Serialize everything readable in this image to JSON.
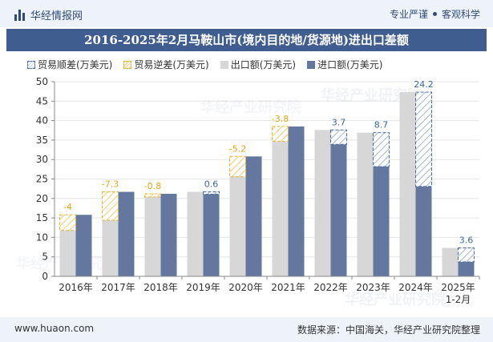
{
  "header": {
    "brand": "华经情报网",
    "tag1": "专业严谨",
    "tag2": "客观科学"
  },
  "footer": {
    "website": "www.huaon.com",
    "source": "数据来源：中国海关，华经产业研究院整理"
  },
  "chart_data": {
    "type": "bar",
    "title": "2016-2025年2月马鞍山市(境内目的地/货源地)进出口差额",
    "categories": [
      "2016年",
      "2017年",
      "2018年",
      "2019年",
      "2020年",
      "2021年",
      "2022年",
      "2023年",
      "2024年",
      "2025年\n1-2月"
    ],
    "series": [
      {
        "name": "出口额(万美元)",
        "values": [
          11.8,
          14.4,
          20.4,
          21.7,
          25.6,
          34.7,
          37.6,
          36.9,
          47.3,
          7.3
        ]
      },
      {
        "name": "进口额(万美元)",
        "values": [
          15.8,
          21.7,
          21.2,
          21.1,
          30.8,
          38.5,
          33.9,
          28.2,
          23.1,
          3.7
        ]
      }
    ],
    "balance": {
      "values": [
        -4,
        -7.3,
        -0.8,
        0.6,
        -5.2,
        -3.8,
        3.7,
        8.7,
        24.2,
        3.6
      ],
      "labels": [
        "-4",
        "-7.3",
        "-0.8",
        "0.6",
        "-5.2",
        "-3.8",
        "3.7",
        "8.7",
        "24.2",
        "3.6"
      ]
    },
    "legend": [
      "贸易顺差(万美元)",
      "贸易逆差(万美元)",
      "出口额(万美元)",
      "进口额(万美元)"
    ],
    "ylim": [
      0,
      50
    ],
    "yticks": [
      0,
      5,
      10,
      15,
      20,
      25,
      30,
      35,
      40,
      45,
      50
    ],
    "xlabel": "",
    "ylabel": "",
    "watermark": "华经产业研究院",
    "colors": {
      "export": "#d7d7d7",
      "import": "#64789f",
      "surplus": "#4a6fa0",
      "deficit": "#e3b53a",
      "deficit_label": "#e6a817",
      "surplus_label": "#3a6a9a"
    }
  }
}
